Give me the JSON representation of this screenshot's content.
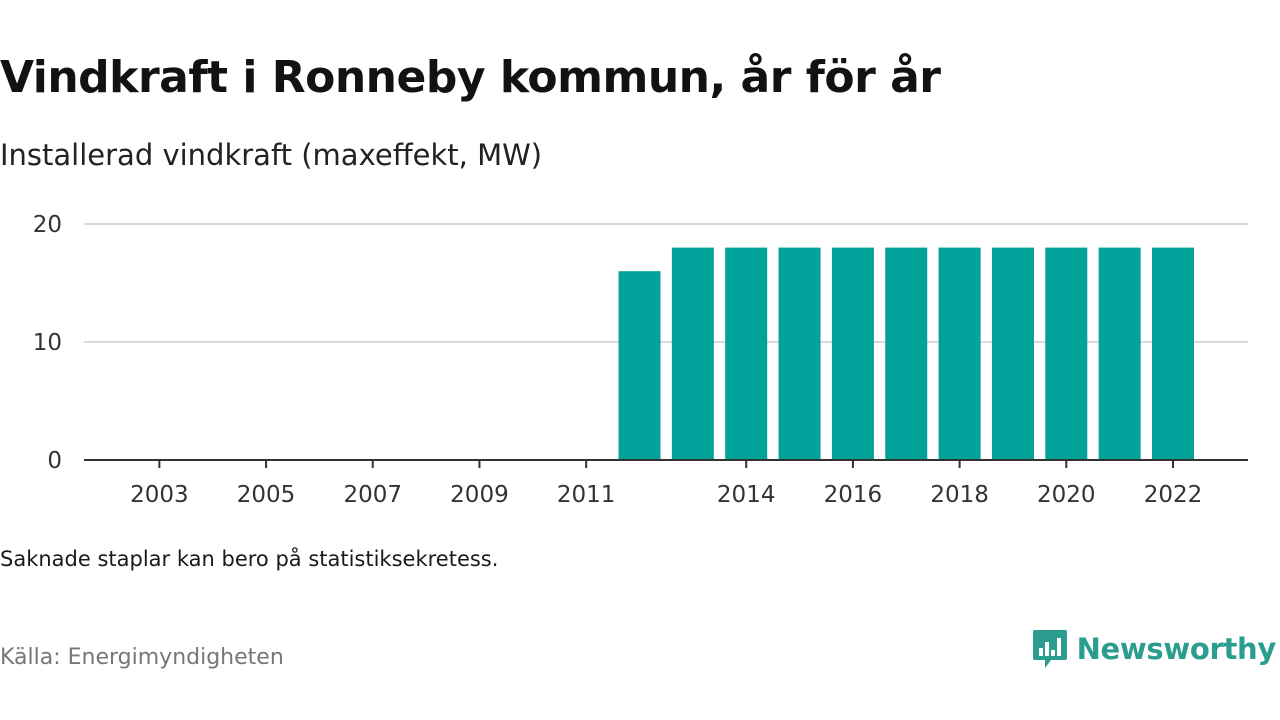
{
  "title": "Vindkraft i Ronneby kommun, år för år",
  "subtitle": "Installerad vindkraft (maxeffekt, MW)",
  "note": "Saknade staplar kan bero på statistiksekretess.",
  "source": "Källa: Energimyndigheten",
  "brand": {
    "name": "Newsworthy",
    "color": "#2a9d8f",
    "icon": "newsworthy-logo-icon"
  },
  "colors": {
    "bar": "#00a29a",
    "grid": "#d9d9d9",
    "axis": "#333333"
  },
  "chart_data": {
    "type": "bar",
    "categories": [
      2002,
      2003,
      2004,
      2005,
      2006,
      2007,
      2008,
      2009,
      2010,
      2011,
      2012,
      2013,
      2014,
      2015,
      2016,
      2017,
      2018,
      2019,
      2020,
      2021,
      2022
    ],
    "values": [
      null,
      null,
      null,
      null,
      null,
      null,
      null,
      null,
      null,
      null,
      16,
      18,
      18,
      18,
      18,
      18,
      18,
      18,
      18,
      18,
      18
    ],
    "x_tick_labels": [
      "2003",
      "2005",
      "2007",
      "2009",
      "2011",
      "2014",
      "2016",
      "2018",
      "2020",
      "2022"
    ],
    "y_ticks": [
      0,
      10,
      20
    ],
    "ylim": [
      0,
      20
    ],
    "title": "Vindkraft i Ronneby kommun, år för år",
    "ylabel": "Installerad vindkraft (maxeffekt, MW)",
    "xlabel": "",
    "grid": true,
    "legend": "none"
  }
}
